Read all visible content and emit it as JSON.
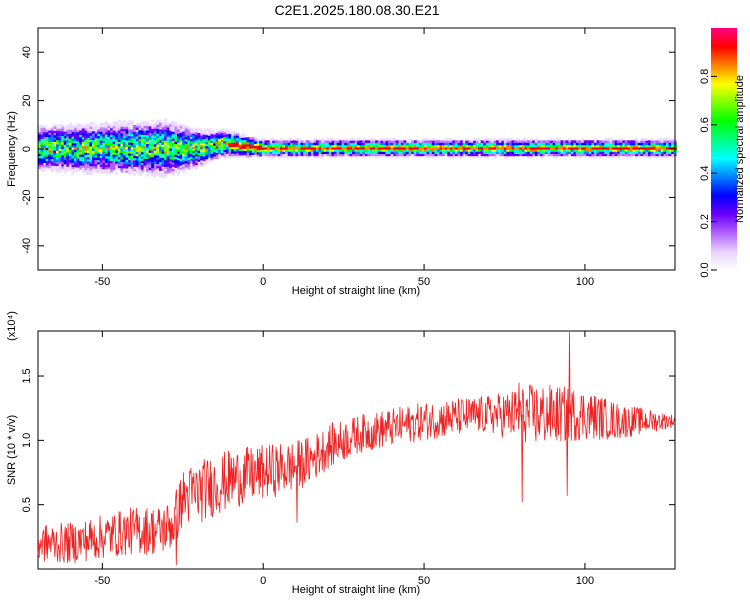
{
  "title": "C2E1.2025.180.08.30.E21",
  "chart_data": [
    {
      "type": "heatmap",
      "xlabel": "Height of straight line (km)",
      "ylabel": "Frequency (Hz)",
      "xlim": [
        -70,
        128
      ],
      "ylim": [
        -50,
        50
      ],
      "xticks": [
        -50,
        0,
        50,
        100
      ],
      "yticks": [
        -40,
        -20,
        0,
        20,
        40
      ],
      "colorbar": {
        "label": "Normalized spectral amplitude",
        "range": [
          0,
          1
        ],
        "ticks": [
          "0.0",
          "0.2",
          "0.4",
          "0.6",
          "0.8"
        ],
        "colormap": [
          "#ffffff",
          "#e8d0ff",
          "#b060ff",
          "#6a00ff",
          "#0000ff",
          "#0080ff",
          "#00ffff",
          "#00ff80",
          "#00ff00",
          "#80ff00",
          "#ffff00",
          "#ff8000",
          "#ff0000",
          "#ff0080"
        ]
      },
      "ridge": [
        {
          "x": -70,
          "y": 0
        },
        {
          "x": -40,
          "y": 0
        },
        {
          "x": -20,
          "y": 0
        },
        {
          "x": -12,
          "y": 2
        },
        {
          "x": -4,
          "y": 0.5
        },
        {
          "x": 0,
          "y": 0
        },
        {
          "x": 50,
          "y": 0
        },
        {
          "x": 128,
          "y": 0
        }
      ],
      "spread_hz": [
        {
          "x": -70,
          "y": 8
        },
        {
          "x": -30,
          "y": 10
        },
        {
          "x": -15,
          "y": 5
        },
        {
          "x": 0,
          "y": 3
        },
        {
          "x": 128,
          "y": 3
        }
      ]
    },
    {
      "type": "line",
      "xlabel": "Height of straight line (km)",
      "ylabel": "SNR (10 * v/v)",
      "yscale_label": "(x10⁴)",
      "xlim": [
        -70,
        128
      ],
      "ylim": [
        0,
        1.85
      ],
      "xticks": [
        -50,
        0,
        50,
        100
      ],
      "yticks": [
        "0.5",
        "1.0",
        "1.5"
      ],
      "line_color": "#ee2222",
      "series": [
        {
          "values": [
            {
              "x": -70,
              "y": 0.2
            },
            {
              "x": -60,
              "y": 0.2
            },
            {
              "x": -50,
              "y": 0.25
            },
            {
              "x": -40,
              "y": 0.3
            },
            {
              "x": -32,
              "y": 0.3
            },
            {
              "x": -28,
              "y": 0.35
            },
            {
              "x": -25,
              "y": 0.55
            },
            {
              "x": -20,
              "y": 0.6
            },
            {
              "x": -10,
              "y": 0.7
            },
            {
              "x": 0,
              "y": 0.75
            },
            {
              "x": 10,
              "y": 0.8
            },
            {
              "x": 15,
              "y": 0.85
            },
            {
              "x": 20,
              "y": 0.95
            },
            {
              "x": 30,
              "y": 1.05
            },
            {
              "x": 40,
              "y": 1.1
            },
            {
              "x": 50,
              "y": 1.15
            },
            {
              "x": 60,
              "y": 1.18
            },
            {
              "x": 70,
              "y": 1.2
            },
            {
              "x": 80,
              "y": 1.2
            },
            {
              "x": 90,
              "y": 1.2
            },
            {
              "x": 100,
              "y": 1.2
            },
            {
              "x": 110,
              "y": 1.15
            },
            {
              "x": 120,
              "y": 1.15
            },
            {
              "x": 128,
              "y": 1.15
            }
          ],
          "noise_amplitude": [
            {
              "x": -70,
              "y": 0.15
            },
            {
              "x": -30,
              "y": 0.2
            },
            {
              "x": -20,
              "y": 0.25
            },
            {
              "x": 10,
              "y": 0.2
            },
            {
              "x": 30,
              "y": 0.15
            },
            {
              "x": 70,
              "y": 0.15
            },
            {
              "x": 85,
              "y": 0.25
            },
            {
              "x": 100,
              "y": 0.2
            },
            {
              "x": 128,
              "y": 0.05
            }
          ],
          "spikes": [
            {
              "x": 80.5,
              "y": 0.52
            },
            {
              "x": 94.5,
              "y": 0.57
            },
            {
              "x": 95.2,
              "y": 1.84
            },
            {
              "x": 79.5,
              "y": 1.45
            },
            {
              "x": 10.5,
              "y": 0.36
            },
            {
              "x": -27,
              "y": 0.03
            }
          ]
        }
      ]
    }
  ]
}
